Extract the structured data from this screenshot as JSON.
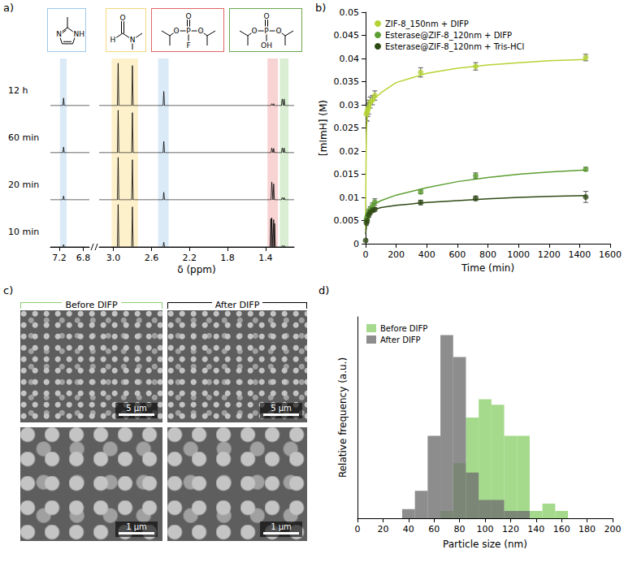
{
  "panels": [
    "a)",
    "b)",
    "c)",
    "d)"
  ],
  "chart_data": [
    {
      "type": "nmr",
      "xlabel": "δ (ppm)",
      "segments": [
        {
          "xlim": [
            6.7,
            7.35
          ],
          "xticks": [
            7.2,
            6.8
          ]
        },
        {
          "xlim": [
            1.1,
            3.15
          ],
          "xticks": [
            {
              "value": 3,
              "label": "3.0"
            },
            2.6,
            2.2,
            1.8,
            1.4
          ]
        }
      ],
      "ylim": [
        0,
        1
      ],
      "tick_labels": "x",
      "highlights": [
        {
          "range": [
            7.08,
            7.19
          ],
          "color": "#dbeaf7"
        },
        {
          "range": [
            2.74,
            3.02
          ],
          "color": "#fdf1cc"
        },
        {
          "range": [
            2.42,
            2.53
          ],
          "color": "#dbeaf7"
        },
        {
          "range": [
            1.27,
            1.38
          ],
          "color": "#f8d3d3"
        },
        {
          "range": [
            1.16,
            1.25
          ],
          "color": "#d9eed2"
        }
      ],
      "structures": [
        {
          "color": "#9cc8ec",
          "atoms": [
            "N",
            "NH"
          ]
        },
        {
          "color": "#f5d77e",
          "atoms": [
            "O",
            "H",
            "N"
          ]
        },
        {
          "color": "#e06666",
          "atoms": [
            "O",
            "P",
            "F",
            "O",
            "O"
          ]
        },
        {
          "color": "#6aa84f",
          "atoms": [
            "O",
            "P",
            "OH",
            "O",
            "O"
          ]
        }
      ],
      "series": [
        {
          "name": "12 h",
          "color": "#000000",
          "peaks": [
            [
              7.13,
              0.16
            ],
            [
              2.95,
              0.9
            ],
            [
              2.8,
              0.85
            ],
            [
              2.47,
              0.3
            ],
            [
              1.335,
              0.04
            ],
            [
              1.315,
              0.04
            ],
            [
              1.225,
              0.14
            ],
            [
              1.205,
              0.14
            ]
          ]
        },
        {
          "name": "60 min",
          "color": "#000000",
          "peaks": [
            [
              7.13,
              0.12
            ],
            [
              2.95,
              0.9
            ],
            [
              2.8,
              0.85
            ],
            [
              2.47,
              0.24
            ],
            [
              1.335,
              0.1
            ],
            [
              1.315,
              0.09
            ],
            [
              1.225,
              0.1
            ],
            [
              1.205,
              0.1
            ]
          ]
        },
        {
          "name": "20 min",
          "color": "#000000",
          "peaks": [
            [
              7.13,
              0.08
            ],
            [
              2.95,
              0.9
            ],
            [
              2.8,
              0.85
            ],
            [
              2.47,
              0.16
            ],
            [
              1.335,
              0.38
            ],
            [
              1.315,
              0.34
            ],
            [
              1.225,
              0.05
            ],
            [
              1.205,
              0.05
            ]
          ]
        },
        {
          "name": "10 min",
          "color": "#000000",
          "peaks": [
            [
              7.13,
              0.05
            ],
            [
              2.95,
              0.9
            ],
            [
              2.8,
              0.85
            ],
            [
              2.47,
              0.1
            ],
            [
              1.345,
              0.6
            ],
            [
              1.335,
              0.62
            ],
            [
              1.315,
              0.58
            ],
            [
              1.305,
              0.5
            ],
            [
              1.225,
              0.03
            ],
            [
              1.205,
              0.03
            ]
          ]
        }
      ]
    },
    {
      "type": "scatter",
      "xlabel": "Time (min)",
      "ylabel": "[mImH] (M)",
      "xlim": [
        0,
        1600
      ],
      "xticks": [
        0,
        200,
        400,
        600,
        800,
        1000,
        1200,
        1400,
        1600
      ],
      "ylim": [
        0,
        0.05
      ],
      "yticks": [
        0,
        0.005,
        0.01,
        0.015,
        0.02,
        0.025,
        0.03,
        0.035,
        0.04,
        0.045,
        0.05
      ],
      "legend": "upper left",
      "series": [
        {
          "name": "ZIF-8_150nm + DIFP",
          "color": "#b5d334",
          "x": [
            5,
            10,
            15,
            20,
            30,
            45,
            60,
            360,
            720,
            1440
          ],
          "values": [
            0.028,
            0.0285,
            0.029,
            0.0295,
            0.0305,
            0.031,
            0.032,
            0.037,
            0.0383,
            0.0402
          ],
          "errors": [
            0.0015,
            0.002,
            0.0015,
            0.0015,
            0.0012,
            0.001,
            0.001,
            0.001,
            0.0008,
            0.0007
          ],
          "fit_x": [
            0,
            2,
            5,
            10,
            20,
            40,
            60,
            100,
            200,
            400,
            600,
            800,
            1000,
            1200,
            1440
          ],
          "fit_values": [
            0.003,
            0.015,
            0.024,
            0.0275,
            0.0292,
            0.0305,
            0.0313,
            0.0326,
            0.0348,
            0.0368,
            0.0379,
            0.0386,
            0.0391,
            0.0395,
            0.0398
          ]
        },
        {
          "name": "Esterase@ZIF-8_120nm + DIFP",
          "color": "#5c9e31",
          "x": [
            5,
            10,
            15,
            20,
            30,
            45,
            60,
            360,
            720,
            1440
          ],
          "values": [
            0.0052,
            0.0058,
            0.0062,
            0.0068,
            0.0074,
            0.0082,
            0.009,
            0.0112,
            0.0147,
            0.0161
          ],
          "errors": [
            0.0006,
            0.0006,
            0.0006,
            0.0006,
            0.0006,
            0.0006,
            0.0007,
            0.0004,
            0.0006,
            0.0004
          ],
          "fit_x": [
            0,
            10,
            30,
            60,
            100,
            200,
            400,
            600,
            800,
            1000,
            1200,
            1440
          ],
          "fit_values": [
            0.004,
            0.0063,
            0.0076,
            0.0086,
            0.0093,
            0.0105,
            0.0121,
            0.0134,
            0.0143,
            0.015,
            0.0155,
            0.0159
          ]
        },
        {
          "name": "Esterase@ZIF-8_120nm + Tris-HCl",
          "color": "#2f4a14",
          "x": [
            0,
            5,
            10,
            20,
            30,
            45,
            60,
            360,
            720,
            1440
          ],
          "values": [
            0.0007,
            0.0045,
            0.005,
            0.0062,
            0.0068,
            0.0072,
            0.0074,
            0.0089,
            0.0098,
            0.0101
          ],
          "errors": [
            0.0003,
            0.0005,
            0.0005,
            0.0005,
            0.0005,
            0.0004,
            0.0004,
            0.0005,
            0.0005,
            0.0012
          ],
          "fit_x": [
            0,
            10,
            30,
            60,
            100,
            200,
            400,
            600,
            800,
            1000,
            1200,
            1440
          ],
          "fit_values": [
            0.002,
            0.0055,
            0.0067,
            0.0074,
            0.0078,
            0.0083,
            0.0089,
            0.0093,
            0.0097,
            0.01,
            0.0102,
            0.0104
          ]
        }
      ]
    },
    {
      "type": "histogram",
      "xlabel": "Particle size (nm)",
      "ylabel": "Relative frequency (a.u.)",
      "xlim": [
        0,
        200
      ],
      "xticks": [
        0,
        20,
        40,
        60,
        80,
        100,
        120,
        140,
        160,
        180,
        200
      ],
      "ylim": [
        0,
        1.1
      ],
      "yticks": [],
      "tick_labels": "x",
      "legend": "upper left",
      "bins": [
        35,
        45,
        55,
        65,
        75,
        85,
        95,
        105,
        115,
        125,
        135,
        145,
        155,
        165
      ],
      "series": [
        {
          "name": "Before DIFP",
          "color": "#8fd16f",
          "values": [
            0,
            0,
            0,
            0.04,
            0.3,
            0.55,
            0.65,
            0.62,
            0.45,
            0.45,
            0.04,
            0.08,
            0.04
          ]
        },
        {
          "name": "After DIFP",
          "color": "#707070",
          "values": [
            0.05,
            0.15,
            0.45,
            1.0,
            0.88,
            0.25,
            0.1,
            0.1,
            0.04,
            0.04,
            0,
            0,
            0
          ]
        }
      ]
    }
  ],
  "images": {
    "columns": [
      {
        "title": "Before DIFP",
        "color": "#8ccf72",
        "scale_bars": [
          "5 µm",
          "1 µm"
        ]
      },
      {
        "title": "After DIFP",
        "color": "#000000",
        "scale_bars": [
          "5 µm",
          "1 µm"
        ]
      }
    ]
  }
}
